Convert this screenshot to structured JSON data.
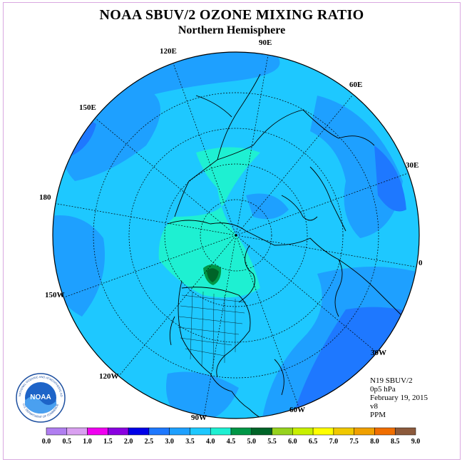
{
  "title": "NOAA SBUV/2 OZONE MIXING RATIO",
  "subtitle": "Northern Hemisphere",
  "longitude_labels": {
    "e90": "90E",
    "e60": "60E",
    "e30": "30E",
    "e0": "0",
    "w30": "30W",
    "w60": "60W",
    "w90": "90W",
    "w120": "120W",
    "w150": "150W",
    "d180": "180",
    "e150": "150E",
    "e120": "120E"
  },
  "info": {
    "instrument": "N19 SBUV/2",
    "level": "0p5 hPa",
    "date": "February 19, 2015",
    "version": "v8",
    "units": "PPM"
  },
  "logo": {
    "text": "NOAA",
    "ring_text": "NATIONAL OCEANIC AND ATMOSPHERIC ADMINISTRATION",
    "ring_text_bottom": "U.S. DEPARTMENT OF COMMERCE"
  },
  "colorbar": {
    "ticks": [
      "0.0",
      "0.5",
      "1.0",
      "1.5",
      "2.0",
      "2.5",
      "3.0",
      "3.5",
      "4.0",
      "4.5",
      "5.0",
      "5.5",
      "6.0",
      "6.5",
      "7.0",
      "7.5",
      "8.0",
      "8.5",
      "9.0"
    ],
    "colors": [
      "#b07ef0",
      "#d9a0f0",
      "#f000f0",
      "#8a00e0",
      "#0000e8",
      "#1e78ff",
      "#1ea0ff",
      "#1ec8ff",
      "#1ef0d2",
      "#009646",
      "#006428",
      "#96d21e",
      "#c8f000",
      "#ffff00",
      "#f0c800",
      "#f0a000",
      "#f06e00",
      "#f00000",
      "#8c5a3c"
    ]
  },
  "map_colors": {
    "level_2_5": "#1e78ff",
    "level_3_0": "#1ea0ff",
    "level_3_5": "#1ec8ff",
    "level_4_0": "#1ef0d2",
    "level_4_5": "#009646",
    "level_5_0": "#006428"
  }
}
